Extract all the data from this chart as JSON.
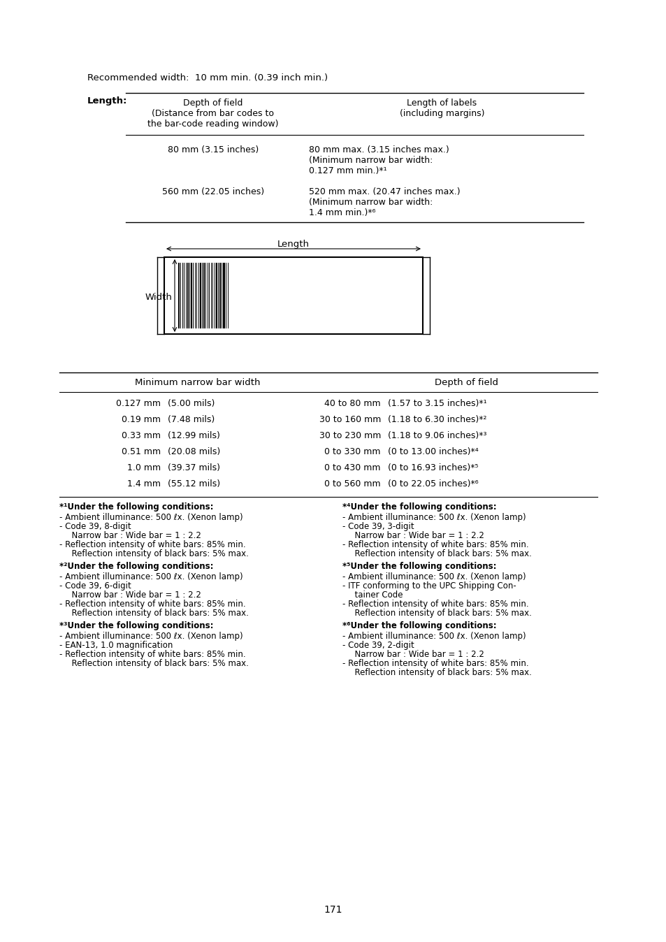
{
  "bg_color": "#ffffff",
  "text_color": "#000000",
  "page_number": "171",
  "recommended_width_text": "Recommended width:  10 mm min. (0.39 inch min.)",
  "length_label": "Length:",
  "table1_header_col1": "Depth of field\n(Distance from bar codes to\nthe bar-code reading window)",
  "table1_header_col2": "Length of labels\n(including margins)",
  "table1_row1_col1": "80 mm (3.15 inches)",
  "table1_row1_col2": "80 mm max. (3.15 inches max.)\n(Minimum narrow bar width:\n0.127 mm min.)*¹",
  "table1_row2_col1": "560 mm (22.05 inches)",
  "table1_row2_col2": "520 mm max. (20.47 inches max.)\n(Minimum narrow bar width:\n1.4 mm min.)*⁶",
  "barcode_diagram_label_length": "Length",
  "barcode_diagram_label_width": "Width",
  "table2_header_col1": "Minimum narrow bar width",
  "table2_header_col2": "Depth of field",
  "table2_rows": [
    [
      "0.127 mm",
      "(5.00 mils)",
      "40 to 80 mm",
      "(1.57 to 3.15 inches)*¹"
    ],
    [
      "0.19 mm",
      "(7.48 mils)",
      "30 to 160 mm",
      "(1.18 to 6.30 inches)*²"
    ],
    [
      "0.33 mm",
      "(12.99 mils)",
      "30 to 230 mm",
      "(1.18 to 9.06 inches)*³"
    ],
    [
      "0.51 mm",
      "(20.08 mils)",
      "0 to 330 mm",
      "(0 to 13.00 inches)*⁴"
    ],
    [
      "1.0 mm",
      "(39.37 mils)",
      "0 to 430 mm",
      "(0 to 16.93 inches)*⁵"
    ],
    [
      "1.4 mm",
      "(55.12 mils)",
      "0 to 560 mm",
      "(0 to 22.05 inches)*⁶"
    ]
  ],
  "footnotes": [
    {
      "label": "*¹Under the following conditions:",
      "lines": [
        "- Ambient illuminance: 500 ℓx. (Xenon lamp)",
        "- Code 39, 8-digit\n  Narrow bar : Wide bar = 1 : 2.2",
        "- Reflection intensity of white bars: 85% min.\n  Reflection intensity of black bars: 5% max."
      ]
    },
    {
      "label": "*²Under the following conditions:",
      "lines": [
        "- Ambient illuminance: 500 ℓx. (Xenon lamp)",
        "- Code 39, 6-digit\n  Narrow bar : Wide bar = 1 : 2.2",
        "- Reflection intensity of white bars: 85% min.\n  Reflection intensity of black bars: 5% max."
      ]
    },
    {
      "label": "*³Under the following conditions:",
      "lines": [
        "- Ambient illuminance: 500 ℓx. (Xenon lamp)",
        "- EAN-13, 1.0 magnification",
        "- Reflection intensity of white bars: 85% min.\n  Reflection intensity of black bars: 5% max."
      ]
    },
    {
      "label": "*⁴Under the following conditions:",
      "lines": [
        "- Ambient illuminance: 500 ℓx. (Xenon lamp)",
        "- Code 39, 3-digit\n  Narrow bar : Wide bar = 1 : 2.2",
        "- Reflection intensity of white bars: 85% min.\n  Reflection intensity of black bars: 5% max."
      ]
    },
    {
      "label": "*⁵Under the following conditions:",
      "lines": [
        "- Ambient illuminance: 500 ℓx. (Xenon lamp)",
        "- ITF conforming to the UPC Shipping Con-\n  tainer Code",
        "- Reflection intensity of white bars: 85% min.\n  Reflection intensity of black bars: 5% max."
      ]
    },
    {
      "label": "*⁶Under the following conditions:",
      "lines": [
        "- Ambient illuminance: 500 ℓx. (Xenon lamp)",
        "- Code 39, 2-digit\n  Narrow bar : Wide bar = 1 : 2.2",
        "- Reflection intensity of white bars: 85% min.\n  Reflection intensity of black bars: 5% max."
      ]
    }
  ]
}
